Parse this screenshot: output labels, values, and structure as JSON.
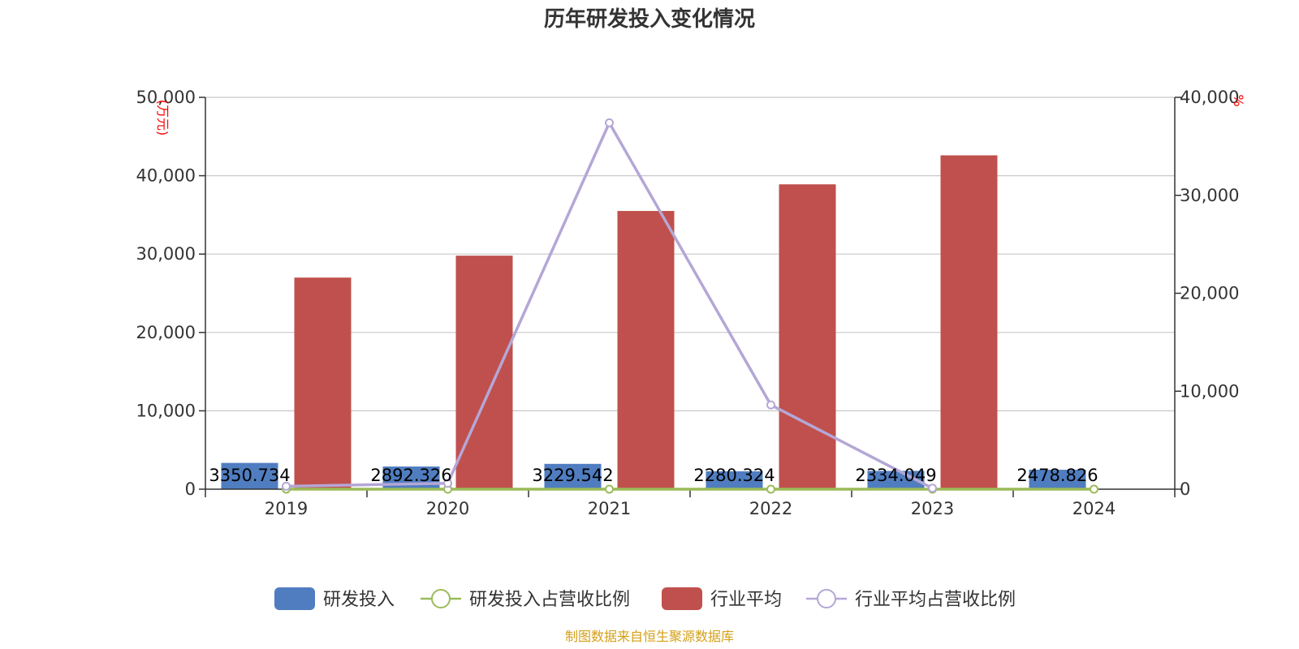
{
  "chart_data": {
    "type": "bar",
    "title": "历年研发投入变化情况",
    "categories": [
      "2019",
      "2020",
      "2021",
      "2022",
      "2023",
      "2024"
    ],
    "left_axis": {
      "unit_label": "(万元)",
      "ylim": [
        0,
        50000
      ],
      "ticks": [
        "0",
        "10,000",
        "20,000",
        "30,000",
        "40,000",
        "50,000"
      ]
    },
    "right_axis": {
      "unit_label": "%",
      "ylim": [
        0,
        40000
      ],
      "ticks": [
        "0",
        "10,000",
        "20,000",
        "30,000",
        "40,000"
      ]
    },
    "series": [
      {
        "name": "研发投入",
        "type": "bar",
        "axis": "left",
        "color": "#4f7dc0",
        "values": [
          3350.734,
          2892.326,
          3229.542,
          2280.324,
          2334.049,
          2478.826
        ],
        "labels": [
          "3350.734",
          "2892.326",
          "3229.542",
          "2280.324",
          "2334.049",
          "2478.826"
        ]
      },
      {
        "name": "研发投入占营收比例",
        "type": "line",
        "axis": "right",
        "color": "#9bbb59",
        "values": [
          3.2,
          2.9,
          3.1,
          2.4,
          2.6,
          2.8
        ]
      },
      {
        "name": "行业平均",
        "type": "bar",
        "axis": "left",
        "color": "#c0504d",
        "values": [
          27000,
          29800,
          35500,
          38900,
          42600,
          null
        ]
      },
      {
        "name": "行业平均占营收比例",
        "type": "line",
        "axis": "right",
        "color": "#b4a7d6",
        "values": [
          300,
          600,
          37400,
          8600,
          100,
          null
        ]
      }
    ],
    "grid": true,
    "legend_position": "bottom"
  },
  "footer": {
    "source": "制图数据来自恒生聚源数据库"
  }
}
